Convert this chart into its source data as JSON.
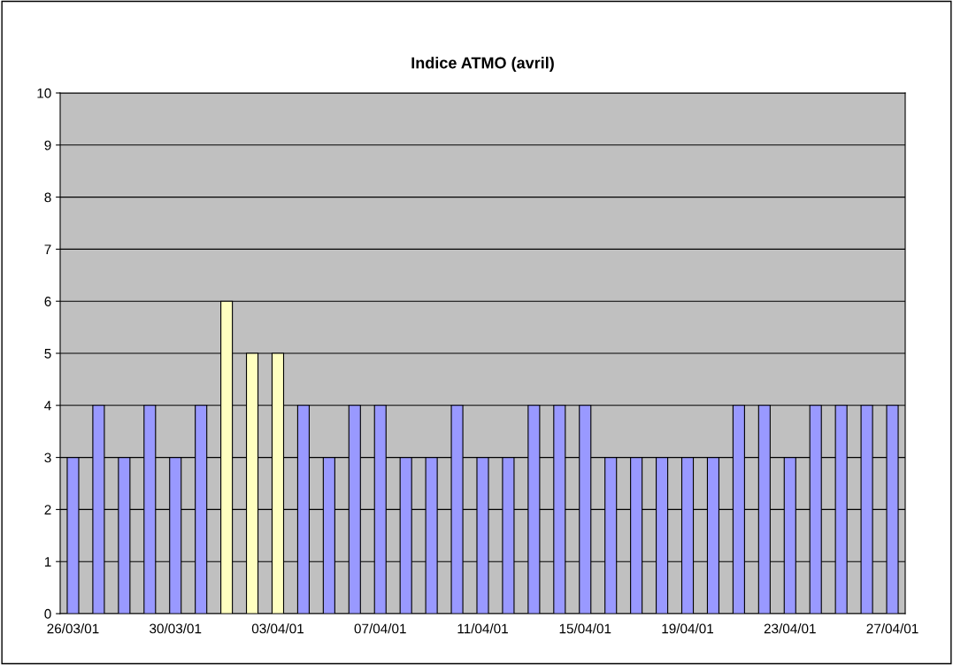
{
  "chart_data": {
    "type": "bar",
    "title": "Indice ATMO (avril)",
    "categories": [
      "26/03/01",
      null,
      null,
      null,
      "30/03/01",
      null,
      null,
      null,
      "03/04/01",
      null,
      null,
      null,
      "07/04/01",
      null,
      null,
      null,
      "11/04/01",
      null,
      null,
      null,
      "15/04/01",
      null,
      null,
      null,
      "19/04/01",
      null,
      null,
      null,
      "23/04/01",
      null,
      null,
      null,
      "27/04/01"
    ],
    "values": [
      3,
      4,
      3,
      4,
      3,
      4,
      6,
      5,
      5,
      4,
      3,
      4,
      4,
      3,
      3,
      4,
      3,
      3,
      4,
      4,
      4,
      3,
      3,
      3,
      3,
      3,
      4,
      4,
      3,
      4,
      4,
      4,
      4
    ],
    "colors": [
      "#9999ff",
      "#9999ff",
      "#9999ff",
      "#9999ff",
      "#9999ff",
      "#9999ff",
      "#ffffc0",
      "#ffffc0",
      "#ffffc0",
      "#9999ff",
      "#9999ff",
      "#9999ff",
      "#9999ff",
      "#9999ff",
      "#9999ff",
      "#9999ff",
      "#9999ff",
      "#9999ff",
      "#9999ff",
      "#9999ff",
      "#9999ff",
      "#9999ff",
      "#9999ff",
      "#9999ff",
      "#9999ff",
      "#9999ff",
      "#9999ff",
      "#9999ff",
      "#9999ff",
      "#9999ff",
      "#9999ff",
      "#9999ff",
      "#9999ff"
    ],
    "ylim": [
      0,
      10
    ],
    "yticks": [
      0,
      1,
      2,
      3,
      4,
      5,
      6,
      7,
      8,
      9,
      10
    ],
    "grid": "y",
    "legend": false
  }
}
